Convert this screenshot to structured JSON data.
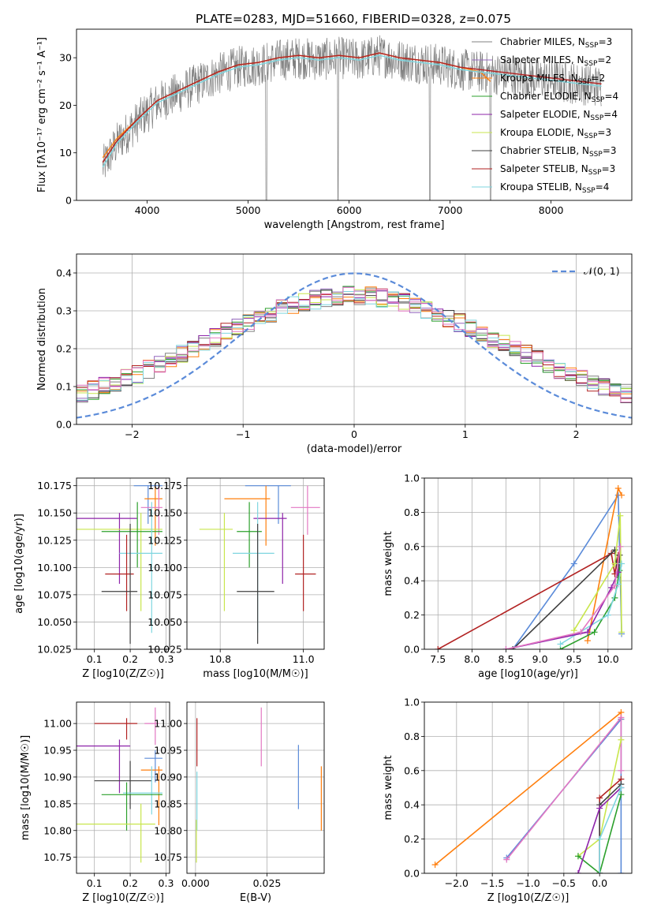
{
  "figure_title": "PLATE=0283, MJD=51660, FIBERID=0328, z=0.075",
  "series": [
    {
      "name": "Chabrier MILES",
      "nssp": "3",
      "color": "#808080"
    },
    {
      "name": "Salpeter MILES",
      "nssp": "2",
      "color": "#9467bd"
    },
    {
      "name": "Kroupa MILES",
      "nssp": "2",
      "color": "#ff7f0e"
    },
    {
      "name": "Chabrier ELODIE",
      "nssp": "4",
      "color": "#2ca02c"
    },
    {
      "name": "Salpeter ELODIE",
      "nssp": "4",
      "color": "#8e24aa"
    },
    {
      "name": "Kroupa ELODIE",
      "nssp": "3",
      "color": "#c8e64c"
    },
    {
      "name": "Chabrier STELIB",
      "nssp": "3",
      "color": "#404040"
    },
    {
      "name": "Salpeter STELIB",
      "nssp": "3",
      "color": "#b22222"
    },
    {
      "name": "Kroupa STELIB",
      "nssp": "4",
      "color": "#7fd6df"
    }
  ],
  "nssp_prefix": "N",
  "nssp_sub": "SSP",
  "chart_data": [
    {
      "id": "spectrum",
      "type": "line",
      "xlabel": "wavelength [Angstrom, rest frame]",
      "ylabel": "Flux [fλ10⁻¹⁷ erg cm⁻² s⁻¹ A⁻¹]",
      "xlim": [
        3300,
        8800
      ],
      "ylim": [
        0,
        36
      ],
      "xticks": [
        4000,
        5000,
        6000,
        7000,
        8000
      ],
      "yticks": [
        0,
        10,
        20,
        30
      ],
      "grid": false,
      "legend": "right",
      "data_color": "#808080",
      "models": [
        {
          "color": "#ff7f0e",
          "x": [
            3560,
            3700,
            3900,
            4100,
            4300,
            4500,
            4700,
            4900,
            5100,
            5300,
            5500,
            5700,
            5900,
            6100,
            6300,
            6500,
            6700,
            6900,
            7100,
            7300,
            7400
          ],
          "y": [
            9,
            13,
            17,
            21,
            23,
            25,
            27,
            28.5,
            29,
            30,
            30.5,
            30,
            30.5,
            30,
            31,
            30,
            29.5,
            29,
            28,
            27,
            25
          ]
        },
        {
          "color": "#7fd6df",
          "x": [
            3560,
            3700,
            3900,
            4100,
            4300,
            4500,
            4700,
            4900,
            5100,
            5300,
            5500,
            5700,
            5900,
            6100,
            6300,
            6500,
            6700,
            6900,
            7100,
            7300,
            7500,
            7700,
            7900,
            8100,
            8300,
            8500
          ],
          "y": [
            7,
            12,
            16.5,
            20.5,
            22.5,
            24.5,
            26.5,
            28,
            28.5,
            29.5,
            30,
            29.5,
            30,
            29.5,
            30.5,
            29.5,
            29,
            28.5,
            27.5,
            27,
            26.5,
            26,
            25.5,
            25,
            24.5,
            24
          ]
        },
        {
          "color": "#b22222",
          "x": [
            3560,
            3700,
            3900,
            4100,
            4300,
            4500,
            4700,
            4900,
            5100,
            5300,
            5500,
            5700,
            5900,
            6100,
            6300,
            6500,
            6700,
            6900,
            7100,
            7300,
            7500,
            7700,
            7900,
            8100,
            8300,
            8500
          ],
          "y": [
            8,
            12.5,
            17,
            21,
            23,
            25,
            27,
            28.5,
            29,
            30,
            30.5,
            30,
            30.5,
            30,
            31,
            30,
            29.5,
            29,
            28,
            27.5,
            27,
            26.5,
            26,
            25.5,
            25,
            24.5
          ]
        }
      ]
    },
    {
      "id": "residual-hist",
      "type": "line",
      "xlabel": "(data-model)/error",
      "ylabel": "Normed distribution",
      "xlim": [
        -2.5,
        2.5
      ],
      "ylim": [
        0,
        0.45
      ],
      "xticks": [
        -2,
        -1,
        0,
        1,
        2
      ],
      "yticks": [
        0.0,
        0.1,
        0.2,
        0.3,
        0.4
      ],
      "grid": true,
      "legend": "top-right",
      "reference": {
        "name": "𝒩(0, 1)",
        "color": "#5b8bd9",
        "mean": 0,
        "sd": 1
      }
    },
    {
      "id": "age-vs-Z",
      "type": "scatter",
      "xlabel": "Z [log10(Z/Z☉)]",
      "ylabel": "age [log10(age/yr)]",
      "xlim": [
        0.05,
        0.31
      ],
      "ylim": [
        10.025,
        10.182
      ],
      "xticks": [
        0.1,
        0.2,
        0.3
      ],
      "yticks": [
        10.025,
        10.05,
        10.075,
        10.1,
        10.125,
        10.15,
        10.175
      ],
      "grid": true,
      "points": [
        {
          "color": "#5b8bd9",
          "x": 0.25,
          "y": 10.175,
          "xerr": [
            0.21,
            0.29
          ],
          "yerr": [
            10.14,
            10.175
          ]
        },
        {
          "color": "#ff7f0e",
          "x": 0.27,
          "y": 10.163,
          "xerr": [
            0.24,
            0.29
          ],
          "yerr": [
            10.12,
            10.175
          ]
        },
        {
          "color": "#e377c2",
          "x": 0.28,
          "y": 10.155,
          "xerr": [
            0.23,
            0.29
          ],
          "yerr": [
            10.13,
            10.175
          ]
        },
        {
          "color": "#8e24aa",
          "x": 0.17,
          "y": 10.145,
          "xerr": [
            0.05,
            0.22
          ],
          "yerr": [
            10.085,
            10.15
          ]
        },
        {
          "color": "#c8e64c",
          "x": 0.23,
          "y": 10.135,
          "xerr": [
            0.05,
            0.29
          ],
          "yerr": [
            10.06,
            10.15
          ]
        },
        {
          "color": "#2ca02c",
          "x": 0.22,
          "y": 10.133,
          "xerr": [
            0.12,
            0.29
          ],
          "yerr": [
            10.1,
            10.16
          ]
        },
        {
          "color": "#7fd6df",
          "x": 0.26,
          "y": 10.113,
          "xerr": [
            0.17,
            0.29
          ],
          "yerr": [
            10.04,
            10.16
          ]
        },
        {
          "color": "#b22222",
          "x": 0.19,
          "y": 10.094,
          "xerr": [
            0.13,
            0.21
          ],
          "yerr": [
            10.06,
            10.13
          ]
        },
        {
          "color": "#404040",
          "x": 0.2,
          "y": 10.078,
          "xerr": [
            0.12,
            0.22
          ],
          "yerr": [
            10.03,
            10.14
          ]
        }
      ]
    },
    {
      "id": "age-vs-mass",
      "type": "scatter",
      "xlabel": "mass [log10(M/M☉)]",
      "ylabel": "",
      "xlim": [
        10.72,
        11.05
      ],
      "ylim": [
        10.025,
        10.182
      ],
      "xticks": [
        10.8,
        11.0
      ],
      "yticks": [
        10.025,
        10.05,
        10.075,
        10.1,
        10.125,
        10.15,
        10.175
      ],
      "grid": true,
      "points": [
        {
          "color": "#5b8bd9",
          "x": 10.94,
          "y": 10.175,
          "xerr": [
            10.86,
            10.97
          ],
          "yerr": [
            10.14,
            10.175
          ]
        },
        {
          "color": "#ff7f0e",
          "x": 10.91,
          "y": 10.163,
          "xerr": [
            10.81,
            10.92
          ],
          "yerr": [
            10.12,
            10.175
          ]
        },
        {
          "color": "#e377c2",
          "x": 11.01,
          "y": 10.155,
          "xerr": [
            10.97,
            11.04
          ],
          "yerr": [
            10.13,
            10.175
          ]
        },
        {
          "color": "#8e24aa",
          "x": 10.95,
          "y": 10.145,
          "xerr": [
            10.88,
            10.96
          ],
          "yerr": [
            10.085,
            10.15
          ]
        },
        {
          "color": "#c8e64c",
          "x": 10.81,
          "y": 10.135,
          "xerr": [
            10.75,
            10.83
          ],
          "yerr": [
            10.06,
            10.15
          ]
        },
        {
          "color": "#2ca02c",
          "x": 10.87,
          "y": 10.133,
          "xerr": [
            10.84,
            10.9
          ],
          "yerr": [
            10.1,
            10.16
          ]
        },
        {
          "color": "#7fd6df",
          "x": 10.89,
          "y": 10.113,
          "xerr": [
            10.83,
            10.93
          ],
          "yerr": [
            10.04,
            10.16
          ]
        },
        {
          "color": "#b22222",
          "x": 11.0,
          "y": 10.094,
          "xerr": [
            10.98,
            11.03
          ],
          "yerr": [
            10.06,
            10.13
          ]
        },
        {
          "color": "#404040",
          "x": 10.89,
          "y": 10.078,
          "xerr": [
            10.84,
            10.93
          ],
          "yerr": [
            10.03,
            10.14
          ]
        }
      ]
    },
    {
      "id": "weight-vs-age",
      "type": "line",
      "xlabel": "age [log10(age/yr)]",
      "ylabel": "mass weight",
      "xlim": [
        7.3,
        10.35
      ],
      "ylim": [
        0,
        1.0
      ],
      "xticks": [
        7.5,
        8.0,
        8.5,
        9.0,
        9.5,
        10.0
      ],
      "yticks": [
        0.0,
        0.2,
        0.4,
        0.6,
        0.8,
        1.0
      ],
      "grid": true,
      "paths": [
        {
          "color": "#5b8bd9",
          "x": [
            8.6,
            9.5,
            10.15,
            10.2
          ],
          "y": [
            0.0,
            0.5,
            0.9,
            0.09
          ]
        },
        {
          "color": "#ff7f0e",
          "x": [
            9.7,
            10.15,
            10.2
          ],
          "y": [
            0.05,
            0.94,
            0.9
          ]
        },
        {
          "color": "#b22222",
          "x": [
            7.5,
            10.05,
            10.1,
            10.15
          ],
          "y": [
            0.0,
            0.56,
            0.44,
            0.55
          ]
        },
        {
          "color": "#404040",
          "x": [
            8.6,
            10.1,
            10.15,
            10.17
          ],
          "y": [
            0.0,
            0.58,
            0.42,
            0.55
          ]
        },
        {
          "color": "#c8e64c",
          "x": [
            9.5,
            10.1,
            10.18,
            10.2
          ],
          "y": [
            0.11,
            0.5,
            0.78,
            0.1
          ]
        },
        {
          "color": "#2ca02c",
          "x": [
            9.3,
            9.8,
            10.1,
            10.17
          ],
          "y": [
            0.0,
            0.1,
            0.3,
            0.46
          ]
        },
        {
          "color": "#7fd6df",
          "x": [
            9.3,
            10.0,
            10.15,
            10.2
          ],
          "y": [
            0.03,
            0.2,
            0.38,
            0.5
          ]
        },
        {
          "color": "#8e24aa",
          "x": [
            8.5,
            9.7,
            10.05,
            10.15
          ],
          "y": [
            0.0,
            0.1,
            0.36,
            0.45
          ]
        },
        {
          "color": "#e377c2",
          "x": [
            8.5,
            9.6,
            10.1,
            10.18
          ],
          "y": [
            0.0,
            0.1,
            0.37,
            0.6
          ]
        }
      ]
    },
    {
      "id": "mass-vs-Z",
      "type": "scatter",
      "xlabel": "Z [log10(Z/Z☉)]",
      "ylabel": "mass [log10(M/M☉)]",
      "xlim": [
        0.05,
        0.31
      ],
      "ylim": [
        10.72,
        11.04
      ],
      "xticks": [
        0.1,
        0.2,
        0.3
      ],
      "yticks": [
        10.75,
        10.8,
        10.85,
        10.9,
        10.95,
        11.0
      ],
      "grid": true,
      "points": [
        {
          "color": "#b22222",
          "x": 0.19,
          "y": 11.0,
          "xerr": [
            0.1,
            0.22
          ],
          "yerr": [
            10.97,
            11.01
          ]
        },
        {
          "color": "#e377c2",
          "x": 0.27,
          "y": 11.0,
          "xerr": [
            0.24,
            0.28
          ],
          "yerr": [
            10.96,
            11.03
          ]
        },
        {
          "color": "#8e24aa",
          "x": 0.17,
          "y": 10.958,
          "xerr": [
            0.05,
            0.2
          ],
          "yerr": [
            10.87,
            10.97
          ]
        },
        {
          "color": "#5b8bd9",
          "x": 0.27,
          "y": 10.935,
          "xerr": [
            0.24,
            0.29
          ],
          "yerr": [
            10.89,
            10.95
          ]
        },
        {
          "color": "#ff7f0e",
          "x": 0.28,
          "y": 10.913,
          "xerr": [
            0.23,
            0.29
          ],
          "yerr": [
            10.81,
            10.92
          ]
        },
        {
          "color": "#404040",
          "x": 0.2,
          "y": 10.893,
          "xerr": [
            0.1,
            0.26
          ],
          "yerr": [
            10.84,
            10.93
          ]
        },
        {
          "color": "#7fd6df",
          "x": 0.26,
          "y": 10.87,
          "xerr": [
            0.18,
            0.29
          ],
          "yerr": [
            10.83,
            10.92
          ]
        },
        {
          "color": "#2ca02c",
          "x": 0.19,
          "y": 10.867,
          "xerr": [
            0.12,
            0.29
          ],
          "yerr": [
            10.8,
            10.89
          ]
        },
        {
          "color": "#c8e64c",
          "x": 0.23,
          "y": 10.812,
          "xerr": [
            0.05,
            0.27
          ],
          "yerr": [
            10.74,
            10.85
          ]
        }
      ]
    },
    {
      "id": "mass-vs-ebv",
      "type": "scatter",
      "xlabel": "E(B-V)",
      "ylabel": "",
      "xlim": [
        -0.003,
        0.045
      ],
      "ylim": [
        10.72,
        11.04
      ],
      "xticks": [
        0.0,
        0.025
      ],
      "yticks": [
        10.75,
        10.8,
        10.85,
        10.9,
        10.95,
        11.0
      ],
      "grid": true,
      "points": [
        {
          "color": "#b22222",
          "x": 0.0005,
          "y": 10.97,
          "xerr": [
            0.0005,
            0.0005
          ],
          "yerr": [
            10.92,
            11.01
          ]
        },
        {
          "color": "#e377c2",
          "x": 0.023,
          "y": 10.98,
          "xerr": [
            0.023,
            0.023
          ],
          "yerr": [
            10.92,
            11.03
          ]
        },
        {
          "color": "#5b8bd9",
          "x": 0.036,
          "y": 10.9,
          "xerr": [
            0.036,
            0.036
          ],
          "yerr": [
            10.84,
            10.96
          ]
        },
        {
          "color": "#ff7f0e",
          "x": 0.044,
          "y": 10.86,
          "xerr": [
            0.044,
            0.044
          ],
          "yerr": [
            10.8,
            10.92
          ]
        },
        {
          "color": "#7fd6df",
          "x": 0.0005,
          "y": 10.86,
          "xerr": [
            0.0005,
            0.0005
          ],
          "yerr": [
            10.8,
            10.91
          ]
        },
        {
          "color": "#c8e64c",
          "x": 0.0003,
          "y": 10.78,
          "xerr": [
            0.0003,
            0.0003
          ],
          "yerr": [
            10.74,
            10.82
          ]
        }
      ]
    },
    {
      "id": "weight-vs-Z",
      "type": "line",
      "xlabel": "Z [log10(Z/Z☉)]",
      "ylabel": "mass weight",
      "xlim": [
        -2.45,
        0.45
      ],
      "ylim": [
        0,
        1.0
      ],
      "xticks": [
        -2.0,
        -1.5,
        -1.0,
        -0.5,
        0.0
      ],
      "yticks": [
        0.0,
        0.2,
        0.4,
        0.6,
        0.8,
        1.0
      ],
      "grid": true,
      "paths": [
        {
          "color": "#ff7f0e",
          "x": [
            -2.3,
            0.3,
            0.3
          ],
          "y": [
            0.05,
            0.94,
            0.9
          ]
        },
        {
          "color": "#5b8bd9",
          "x": [
            -1.3,
            0.3,
            0.3
          ],
          "y": [
            0.09,
            0.9,
            0.0
          ]
        },
        {
          "color": "#e377c2",
          "x": [
            -1.3,
            0.3,
            0.3
          ],
          "y": [
            0.08,
            0.91,
            0.6
          ]
        },
        {
          "color": "#c8e64c",
          "x": [
            -0.3,
            0.0,
            0.3
          ],
          "y": [
            0.1,
            0.2,
            0.78
          ]
        },
        {
          "color": "#2ca02c",
          "x": [
            -0.3,
            0.0,
            0.3
          ],
          "y": [
            0.1,
            0.0,
            0.46
          ]
        },
        {
          "color": "#b22222",
          "x": [
            0.0,
            0.0,
            0.3
          ],
          "y": [
            0.0,
            0.44,
            0.55
          ]
        },
        {
          "color": "#404040",
          "x": [
            0.0,
            0.0,
            0.3
          ],
          "y": [
            0.0,
            0.4,
            0.52
          ]
        },
        {
          "color": "#8e24aa",
          "x": [
            -0.3,
            0.0,
            0.3
          ],
          "y": [
            0.0,
            0.38,
            0.5
          ]
        },
        {
          "color": "#7fd6df",
          "x": [
            0.0,
            0.0,
            0.3
          ],
          "y": [
            0.0,
            0.2,
            0.5
          ]
        }
      ]
    }
  ]
}
